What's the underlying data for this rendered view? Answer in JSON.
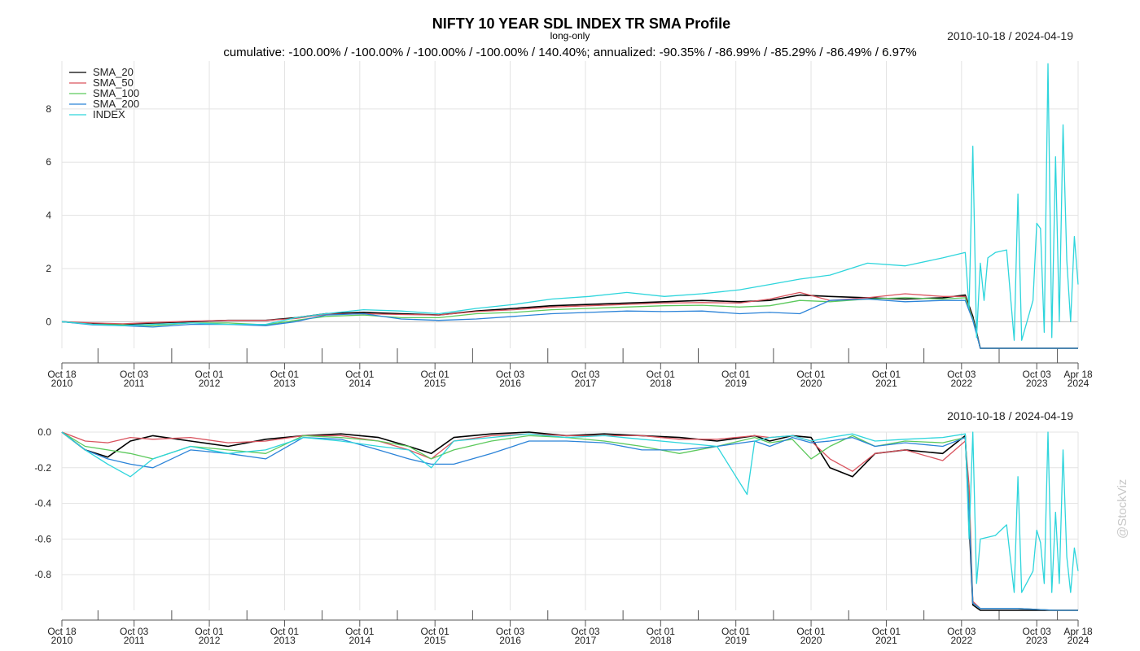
{
  "title": "NIFTY 10 YEAR SDL INDEX TR SMA Profile",
  "subtitle": "long-only",
  "stats_line": "cumulative: -100.00% / -100.00% / -100.00% / -100.00% / 140.40%; annualized: -90.35% / -86.99% / -85.29% / -86.49% / 6.97%",
  "date_range": "2010-10-18 / 2024-04-19",
  "watermark": "@StockViz",
  "chart_data": [
    {
      "type": "line",
      "title": "",
      "xlim": [
        2010.79,
        2024.3
      ],
      "ylim": [
        -1.0,
        9.8
      ],
      "yticks": [
        0,
        2,
        4,
        6,
        8
      ],
      "ytick_labels": [
        "0",
        "2",
        "4",
        "6",
        "8"
      ],
      "grid": true,
      "legend_position": "top-left",
      "xticks": [
        {
          "x": 2010.79,
          "l1": "Oct 18",
          "l2": "2010"
        },
        {
          "x": 2011.75,
          "l1": "Oct 03",
          "l2": "2011"
        },
        {
          "x": 2012.75,
          "l1": "Oct 01",
          "l2": "2012"
        },
        {
          "x": 2013.75,
          "l1": "Oct 01",
          "l2": "2013"
        },
        {
          "x": 2014.75,
          "l1": "Oct 01",
          "l2": "2014"
        },
        {
          "x": 2015.75,
          "l1": "Oct 01",
          "l2": "2015"
        },
        {
          "x": 2016.75,
          "l1": "Oct 03",
          "l2": "2016"
        },
        {
          "x": 2017.75,
          "l1": "Oct 03",
          "l2": "2017"
        },
        {
          "x": 2018.75,
          "l1": "Oct 01",
          "l2": "2018"
        },
        {
          "x": 2019.75,
          "l1": "Oct 01",
          "l2": "2019"
        },
        {
          "x": 2020.75,
          "l1": "Oct 01",
          "l2": "2020"
        },
        {
          "x": 2021.75,
          "l1": "Oct 01",
          "l2": "2021"
        },
        {
          "x": 2022.75,
          "l1": "Oct 03",
          "l2": "2022"
        },
        {
          "x": 2023.75,
          "l1": "Oct 03",
          "l2": "2023"
        },
        {
          "x": 2024.3,
          "l1": "Apr 18",
          "l2": "2024"
        }
      ],
      "series": [
        {
          "name": "SMA_20",
          "color": "#000000",
          "x": [
            2010.79,
            2011.2,
            2011.6,
            2012.0,
            2012.5,
            2013.0,
            2013.5,
            2013.9,
            2014.3,
            2014.8,
            2015.3,
            2015.8,
            2016.3,
            2016.8,
            2017.3,
            2017.8,
            2018.3,
            2018.8,
            2019.3,
            2019.8,
            2020.2,
            2020.6,
            2021.0,
            2021.5,
            2022.0,
            2022.5,
            2022.8,
            2022.9,
            2023.0,
            2023.5,
            2024.0,
            2024.3
          ],
          "y": [
            0.0,
            -0.08,
            -0.1,
            -0.05,
            0.0,
            0.05,
            0.05,
            0.15,
            0.3,
            0.35,
            0.3,
            0.25,
            0.4,
            0.5,
            0.6,
            0.65,
            0.7,
            0.75,
            0.8,
            0.75,
            0.8,
            1.0,
            0.95,
            0.9,
            0.85,
            0.9,
            1.0,
            0.2,
            -1.0,
            -1.0,
            -1.0,
            -1.0
          ]
        },
        {
          "name": "SMA_50",
          "color": "#d9535e",
          "x": [
            2010.79,
            2011.2,
            2011.6,
            2012.0,
            2012.5,
            2013.0,
            2013.5,
            2013.9,
            2014.3,
            2014.8,
            2015.3,
            2015.8,
            2016.3,
            2016.8,
            2017.3,
            2017.8,
            2018.3,
            2018.8,
            2019.3,
            2019.8,
            2020.2,
            2020.6,
            2021.0,
            2021.5,
            2022.0,
            2022.5,
            2022.8,
            2022.9,
            2023.0,
            2023.5,
            2024.0,
            2024.3
          ],
          "y": [
            0.0,
            -0.05,
            -0.08,
            -0.03,
            0.02,
            0.05,
            0.05,
            0.12,
            0.28,
            0.3,
            0.27,
            0.25,
            0.38,
            0.45,
            0.55,
            0.6,
            0.65,
            0.7,
            0.72,
            0.7,
            0.85,
            1.1,
            0.8,
            0.9,
            1.05,
            0.95,
            0.95,
            0.1,
            -1.0,
            -1.0,
            -1.0,
            -1.0
          ]
        },
        {
          "name": "SMA_100",
          "color": "#5cc95c",
          "x": [
            2010.79,
            2011.2,
            2011.6,
            2012.0,
            2012.5,
            2013.0,
            2013.5,
            2013.9,
            2014.3,
            2014.8,
            2015.3,
            2015.8,
            2016.3,
            2016.8,
            2017.3,
            2017.8,
            2018.3,
            2018.8,
            2019.3,
            2019.8,
            2020.2,
            2020.6,
            2021.0,
            2021.5,
            2022.0,
            2022.5,
            2022.8,
            2022.9,
            2023.0,
            2023.5,
            2024.0,
            2024.3
          ],
          "y": [
            0.0,
            -0.1,
            -0.12,
            -0.15,
            -0.05,
            -0.05,
            -0.12,
            0.05,
            0.2,
            0.25,
            0.15,
            0.15,
            0.3,
            0.35,
            0.45,
            0.5,
            0.55,
            0.6,
            0.62,
            0.55,
            0.6,
            0.8,
            0.75,
            0.85,
            0.9,
            0.85,
            0.9,
            0.1,
            -1.0,
            -1.0,
            -1.0,
            -1.0
          ]
        },
        {
          "name": "SMA_200",
          "color": "#2b83d8",
          "x": [
            2010.79,
            2011.2,
            2011.6,
            2012.0,
            2012.5,
            2013.0,
            2013.5,
            2013.9,
            2014.3,
            2014.8,
            2015.3,
            2015.8,
            2016.3,
            2016.8,
            2017.3,
            2017.8,
            2018.3,
            2018.8,
            2019.3,
            2019.8,
            2020.2,
            2020.6,
            2021.0,
            2021.5,
            2022.0,
            2022.5,
            2022.8,
            2022.9,
            2023.0,
            2023.5,
            2024.0,
            2024.3
          ],
          "y": [
            0.0,
            -0.12,
            -0.15,
            -0.2,
            -0.1,
            -0.1,
            -0.15,
            0.0,
            0.25,
            0.3,
            0.1,
            0.05,
            0.1,
            0.2,
            0.3,
            0.35,
            0.4,
            0.38,
            0.4,
            0.3,
            0.35,
            0.3,
            0.8,
            0.85,
            0.75,
            0.8,
            0.8,
            0.05,
            -1.0,
            -1.0,
            -1.0,
            -1.0
          ]
        },
        {
          "name": "INDEX",
          "color": "#2ed5dc",
          "x": [
            2010.79,
            2011.2,
            2011.6,
            2012.0,
            2012.5,
            2013.0,
            2013.5,
            2013.9,
            2014.3,
            2014.8,
            2015.3,
            2015.8,
            2016.3,
            2016.8,
            2017.3,
            2017.8,
            2018.3,
            2018.8,
            2019.3,
            2019.8,
            2020.2,
            2020.6,
            2021.0,
            2021.5,
            2022.0,
            2022.5,
            2022.8,
            2022.85,
            2022.9,
            2022.95,
            2023.0,
            2023.05,
            2023.1,
            2023.2,
            2023.35,
            2023.45,
            2023.5,
            2023.55,
            2023.7,
            2023.75,
            2023.8,
            2023.85,
            2023.9,
            2023.95,
            2024.0,
            2024.05,
            2024.1,
            2024.15,
            2024.2,
            2024.25,
            2024.3
          ],
          "y": [
            0.0,
            -0.1,
            -0.15,
            -0.1,
            -0.05,
            -0.1,
            -0.1,
            0.15,
            0.3,
            0.45,
            0.4,
            0.3,
            0.5,
            0.65,
            0.85,
            0.95,
            1.1,
            0.95,
            1.05,
            1.2,
            1.4,
            1.6,
            1.75,
            2.2,
            2.1,
            2.4,
            2.6,
            0.5,
            6.6,
            -0.6,
            2.2,
            0.8,
            2.4,
            2.6,
            2.7,
            -0.7,
            4.8,
            -0.7,
            0.8,
            3.7,
            3.5,
            -0.4,
            9.7,
            -0.6,
            6.2,
            0.0,
            7.4,
            2.3,
            0.0,
            3.2,
            1.4
          ]
        }
      ]
    },
    {
      "type": "line",
      "title": "",
      "xlim": [
        2010.79,
        2024.3
      ],
      "ylim": [
        -1.0,
        0.0
      ],
      "yticks": [
        0.0,
        -0.2,
        -0.4,
        -0.6,
        -0.8
      ],
      "ytick_labels": [
        "0.0",
        "-0.2",
        "-0.4",
        "-0.6",
        "-0.8"
      ],
      "grid": true,
      "xticks": [
        {
          "x": 2010.79,
          "l1": "Oct 18",
          "l2": "2010"
        },
        {
          "x": 2011.75,
          "l1": "Oct 03",
          "l2": "2011"
        },
        {
          "x": 2012.75,
          "l1": "Oct 01",
          "l2": "2012"
        },
        {
          "x": 2013.75,
          "l1": "Oct 01",
          "l2": "2013"
        },
        {
          "x": 2014.75,
          "l1": "Oct 01",
          "l2": "2014"
        },
        {
          "x": 2015.75,
          "l1": "Oct 01",
          "l2": "2015"
        },
        {
          "x": 2016.75,
          "l1": "Oct 03",
          "l2": "2016"
        },
        {
          "x": 2017.75,
          "l1": "Oct 03",
          "l2": "2017"
        },
        {
          "x": 2018.75,
          "l1": "Oct 01",
          "l2": "2018"
        },
        {
          "x": 2019.75,
          "l1": "Oct 01",
          "l2": "2019"
        },
        {
          "x": 2020.75,
          "l1": "Oct 01",
          "l2": "2020"
        },
        {
          "x": 2021.75,
          "l1": "Oct 01",
          "l2": "2021"
        },
        {
          "x": 2022.75,
          "l1": "Oct 03",
          "l2": "2022"
        },
        {
          "x": 2023.75,
          "l1": "Oct 03",
          "l2": "2023"
        },
        {
          "x": 2024.3,
          "l1": "Apr 18",
          "l2": "2024"
        }
      ],
      "series": [
        {
          "name": "SMA_20",
          "color": "#000000",
          "x": [
            2010.79,
            2011.1,
            2011.4,
            2011.7,
            2012.0,
            2012.5,
            2013.0,
            2013.5,
            2014.0,
            2014.5,
            2015.0,
            2015.4,
            2015.7,
            2016.0,
            2016.5,
            2017.0,
            2017.5,
            2018.0,
            2018.5,
            2019.0,
            2019.5,
            2020.0,
            2020.2,
            2020.5,
            2020.75,
            2021.0,
            2021.3,
            2021.6,
            2022.0,
            2022.5,
            2022.8,
            2022.85,
            2022.9,
            2023.0,
            2023.5,
            2024.0,
            2024.3
          ],
          "y": [
            0.0,
            -0.1,
            -0.14,
            -0.05,
            -0.02,
            -0.05,
            -0.08,
            -0.04,
            -0.02,
            -0.01,
            -0.03,
            -0.08,
            -0.12,
            -0.03,
            -0.01,
            0.0,
            -0.02,
            -0.01,
            -0.02,
            -0.03,
            -0.05,
            -0.02,
            -0.05,
            -0.02,
            -0.03,
            -0.2,
            -0.25,
            -0.12,
            -0.1,
            -0.12,
            -0.02,
            -0.5,
            -0.97,
            -1.0,
            -1.0,
            -1.0,
            -1.0
          ]
        },
        {
          "name": "SMA_50",
          "color": "#d9535e",
          "x": [
            2010.79,
            2011.1,
            2011.4,
            2011.7,
            2012.0,
            2012.5,
            2013.0,
            2013.5,
            2014.0,
            2014.5,
            2015.0,
            2015.4,
            2015.7,
            2016.0,
            2016.5,
            2017.0,
            2017.5,
            2018.0,
            2018.5,
            2019.0,
            2019.5,
            2020.0,
            2020.2,
            2020.5,
            2020.75,
            2021.0,
            2021.3,
            2021.6,
            2022.0,
            2022.5,
            2022.8,
            2022.85,
            2022.9,
            2023.0,
            2023.5,
            2024.0,
            2024.3
          ],
          "y": [
            0.0,
            -0.05,
            -0.06,
            -0.03,
            -0.04,
            -0.03,
            -0.06,
            -0.05,
            -0.02,
            -0.02,
            -0.05,
            -0.1,
            -0.15,
            -0.05,
            -0.02,
            -0.01,
            -0.02,
            -0.02,
            -0.02,
            -0.04,
            -0.04,
            -0.02,
            -0.03,
            -0.02,
            -0.05,
            -0.15,
            -0.22,
            -0.12,
            -0.1,
            -0.16,
            -0.05,
            -0.3,
            -0.95,
            -0.99,
            -0.99,
            -1.0,
            -1.0
          ]
        },
        {
          "name": "SMA_100",
          "color": "#5cc95c",
          "x": [
            2010.79,
            2011.1,
            2011.4,
            2011.7,
            2012.0,
            2012.5,
            2013.0,
            2013.5,
            2014.0,
            2014.5,
            2015.0,
            2015.4,
            2015.7,
            2016.0,
            2016.5,
            2017.0,
            2017.5,
            2018.0,
            2018.5,
            2019.0,
            2019.5,
            2020.0,
            2020.2,
            2020.5,
            2020.75,
            2021.0,
            2021.3,
            2021.6,
            2022.0,
            2022.5,
            2022.8,
            2022.85,
            2022.9,
            2023.0,
            2023.5,
            2024.0,
            2024.3
          ],
          "y": [
            0.0,
            -0.08,
            -0.1,
            -0.12,
            -0.15,
            -0.08,
            -0.1,
            -0.12,
            -0.02,
            -0.03,
            -0.05,
            -0.08,
            -0.15,
            -0.1,
            -0.05,
            -0.02,
            -0.03,
            -0.05,
            -0.08,
            -0.12,
            -0.08,
            -0.03,
            -0.06,
            -0.04,
            -0.15,
            -0.08,
            -0.02,
            -0.08,
            -0.05,
            -0.06,
            -0.03,
            -0.4,
            -0.96,
            -0.99,
            -0.99,
            -1.0,
            -1.0
          ]
        },
        {
          "name": "SMA_200",
          "color": "#2b83d8",
          "x": [
            2010.79,
            2011.1,
            2011.4,
            2011.7,
            2012.0,
            2012.5,
            2013.0,
            2013.5,
            2014.0,
            2014.5,
            2015.0,
            2015.4,
            2015.7,
            2016.0,
            2016.5,
            2017.0,
            2017.5,
            2018.0,
            2018.5,
            2019.0,
            2019.5,
            2020.0,
            2020.2,
            2020.5,
            2020.75,
            2021.0,
            2021.3,
            2021.6,
            2022.0,
            2022.5,
            2022.8,
            2022.85,
            2022.9,
            2023.0,
            2023.5,
            2024.0,
            2024.3
          ],
          "y": [
            0.0,
            -0.1,
            -0.15,
            -0.18,
            -0.2,
            -0.1,
            -0.12,
            -0.15,
            -0.03,
            -0.04,
            -0.1,
            -0.15,
            -0.18,
            -0.18,
            -0.12,
            -0.05,
            -0.05,
            -0.06,
            -0.1,
            -0.1,
            -0.08,
            -0.05,
            -0.08,
            -0.03,
            -0.06,
            -0.05,
            -0.03,
            -0.08,
            -0.06,
            -0.08,
            -0.03,
            -0.45,
            -0.96,
            -0.99,
            -0.99,
            -1.0,
            -1.0
          ]
        },
        {
          "name": "INDEX",
          "color": "#2ed5dc",
          "x": [
            2010.79,
            2011.1,
            2011.4,
            2011.7,
            2012.0,
            2012.5,
            2013.0,
            2013.5,
            2014.0,
            2014.5,
            2015.0,
            2015.4,
            2015.7,
            2016.0,
            2016.5,
            2017.0,
            2017.5,
            2018.0,
            2018.5,
            2019.0,
            2019.5,
            2019.9,
            2020.0,
            2020.2,
            2020.5,
            2020.75,
            2021.0,
            2021.3,
            2021.6,
            2022.0,
            2022.5,
            2022.8,
            2022.85,
            2022.9,
            2022.95,
            2023.0,
            2023.2,
            2023.35,
            2023.45,
            2023.5,
            2023.55,
            2023.7,
            2023.75,
            2023.8,
            2023.85,
            2023.9,
            2023.95,
            2024.0,
            2024.05,
            2024.1,
            2024.15,
            2024.2,
            2024.25,
            2024.3
          ],
          "y": [
            0.0,
            -0.1,
            -0.18,
            -0.25,
            -0.15,
            -0.08,
            -0.12,
            -0.1,
            -0.03,
            -0.05,
            -0.08,
            -0.1,
            -0.2,
            -0.05,
            -0.03,
            -0.01,
            -0.03,
            -0.02,
            -0.04,
            -0.06,
            -0.08,
            -0.35,
            -0.05,
            -0.03,
            -0.02,
            -0.05,
            -0.03,
            -0.01,
            -0.05,
            -0.04,
            -0.03,
            -0.01,
            -0.6,
            0.0,
            -0.85,
            -0.6,
            -0.58,
            -0.52,
            -0.9,
            -0.25,
            -0.9,
            -0.78,
            -0.55,
            -0.62,
            -0.85,
            0.0,
            -0.9,
            -0.45,
            -0.85,
            -0.1,
            -0.7,
            -0.9,
            -0.65,
            -0.78
          ]
        }
      ]
    }
  ]
}
